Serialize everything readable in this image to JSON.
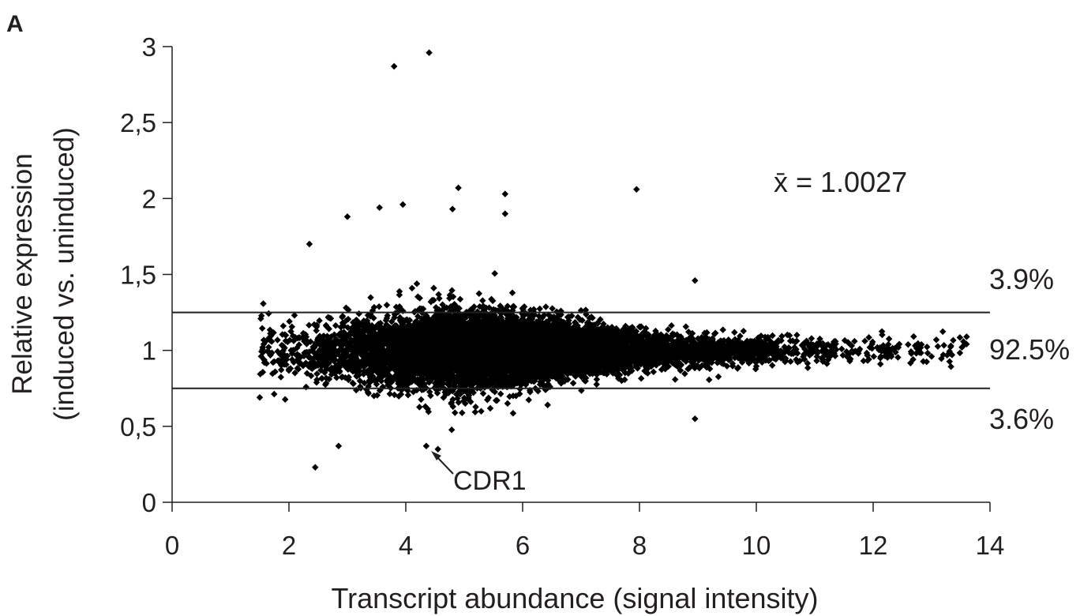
{
  "panel_label": "A",
  "chart_data": {
    "type": "scatter",
    "xlabel": "Transcript abundance (signal intensity)",
    "ylabel_line1": "Relative expression",
    "ylabel_line2": "(induced vs. uninduced)",
    "xlim": [
      0,
      14
    ],
    "ylim": [
      0,
      3
    ],
    "x_ticks": [
      0,
      2,
      4,
      6,
      8,
      10,
      12,
      14
    ],
    "x_tick_labels": [
      "0",
      "2",
      "4",
      "6",
      "8",
      "10",
      "12",
      "14"
    ],
    "y_ticks": [
      0,
      0.5,
      1,
      1.5,
      2,
      2.5,
      3
    ],
    "y_tick_labels": [
      "0",
      "0,5",
      "1",
      "1,5",
      "2",
      "2,5",
      "3"
    ],
    "grid": false,
    "threshold_lines": [
      1.25,
      0.75
    ],
    "mean_annotation": "x̄ = 1.0027",
    "band_percentages": [
      "3.9%",
      "92.5%",
      "3.6%"
    ],
    "callout": {
      "label": "CDR1",
      "x": 4.35,
      "y": 0.37
    },
    "distribution": {
      "x_range": [
        1.5,
        13.6
      ],
      "dense_x_range": [
        2.8,
        9.5
      ],
      "center_y": 1.0,
      "description_points_sampled": true
    },
    "outliers": [
      [
        3.8,
        2.87
      ],
      [
        4.4,
        2.96
      ],
      [
        4.9,
        2.07
      ],
      [
        5.7,
        2.03
      ],
      [
        7.95,
        2.06
      ],
      [
        3.55,
        1.94
      ],
      [
        3.95,
        1.96
      ],
      [
        3.0,
        1.88
      ],
      [
        4.8,
        1.93
      ],
      [
        5.7,
        1.9
      ],
      [
        2.35,
        1.7
      ],
      [
        8.95,
        1.46
      ],
      [
        13.6,
        1.09
      ],
      [
        13.35,
        0.97
      ],
      [
        13.0,
        0.96
      ],
      [
        2.45,
        0.23
      ],
      [
        2.85,
        0.37
      ],
      [
        4.35,
        0.37
      ],
      [
        4.55,
        0.35
      ],
      [
        1.5,
        0.69
      ],
      [
        8.95,
        0.55
      ],
      [
        1.55,
        1.02
      ]
    ],
    "colors": {
      "points": "#000000",
      "axis": "#231f20",
      "lines": "#231f20"
    }
  }
}
